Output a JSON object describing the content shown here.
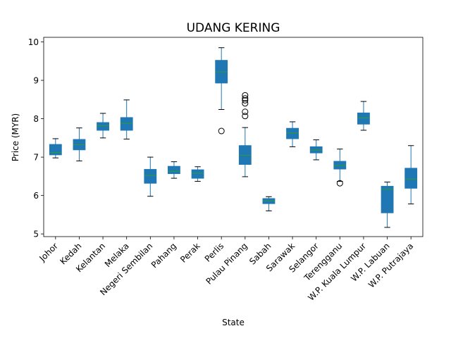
{
  "chart_data": {
    "type": "box",
    "title": "UDANG KERING",
    "xlabel": "State",
    "ylabel": "Price (MYR)",
    "ylim": [
      4.93,
      10.12
    ],
    "yticks": [
      5,
      6,
      7,
      8,
      9,
      10
    ],
    "grid": false,
    "colors": {
      "box": "#1f77b4",
      "median": "#2ca02c",
      "whisker": "#1f77b4",
      "flier": "#000000"
    },
    "categories": [
      "Johor",
      "Kedah",
      "Kelantan",
      "Melaka",
      "Negeri Sembilan",
      "Pahang",
      "Perak",
      "Perlis",
      "Pulau Pinang",
      "Sabah",
      "Sarawak",
      "Selangor",
      "Terengganu",
      "W.P. Kuala Lumpur",
      "W.P. Labuan",
      "W.P. Putrajaya"
    ],
    "boxes": [
      {
        "whislo": 6.98,
        "q1": 7.06,
        "med": 7.12,
        "q3": 7.33,
        "whishi": 7.48,
        "fliers": []
      },
      {
        "whislo": 6.9,
        "q1": 7.19,
        "med": 7.32,
        "q3": 7.46,
        "whishi": 7.76,
        "fliers": []
      },
      {
        "whislo": 7.5,
        "q1": 7.7,
        "med": 7.82,
        "q3": 7.9,
        "whishi": 8.14,
        "fliers": []
      },
      {
        "whislo": 7.47,
        "q1": 7.7,
        "med": 7.88,
        "q3": 8.03,
        "whishi": 8.49,
        "fliers": []
      },
      {
        "whislo": 5.98,
        "q1": 6.32,
        "med": 6.52,
        "q3": 6.68,
        "whishi": 7.0,
        "fliers": []
      },
      {
        "whislo": 6.45,
        "q1": 6.57,
        "med": 6.63,
        "q3": 6.76,
        "whishi": 6.88,
        "fliers": []
      },
      {
        "whislo": 6.37,
        "q1": 6.45,
        "med": 6.58,
        "q3": 6.67,
        "whishi": 6.75,
        "fliers": []
      },
      {
        "whislo": 8.24,
        "q1": 8.93,
        "med": 9.22,
        "q3": 9.52,
        "whishi": 9.85,
        "fliers": [
          7.68
        ]
      },
      {
        "whislo": 6.49,
        "q1": 6.81,
        "med": 7.05,
        "q3": 7.3,
        "whishi": 7.77,
        "fliers": [
          8.07,
          8.18,
          8.4,
          8.48,
          8.53,
          8.61
        ]
      },
      {
        "whislo": 5.6,
        "q1": 5.79,
        "med": 5.86,
        "q3": 5.92,
        "whishi": 5.97,
        "fliers": []
      },
      {
        "whislo": 7.27,
        "q1": 7.48,
        "med": 7.63,
        "q3": 7.75,
        "whishi": 7.92,
        "fliers": []
      },
      {
        "whislo": 6.93,
        "q1": 7.11,
        "med": 7.18,
        "q3": 7.27,
        "whishi": 7.45,
        "fliers": []
      },
      {
        "whislo": 6.37,
        "q1": 6.69,
        "med": 6.78,
        "q3": 6.89,
        "whishi": 7.21,
        "fliers": [
          6.32
        ]
      },
      {
        "whislo": 7.7,
        "q1": 7.86,
        "med": 8.02,
        "q3": 8.15,
        "whishi": 8.45,
        "fliers": []
      },
      {
        "whislo": 5.17,
        "q1": 5.55,
        "med": 6.17,
        "q3": 6.24,
        "whishi": 6.35,
        "fliers": []
      },
      {
        "whislo": 5.78,
        "q1": 6.19,
        "med": 6.43,
        "q3": 6.71,
        "whishi": 7.3,
        "fliers": []
      }
    ]
  }
}
